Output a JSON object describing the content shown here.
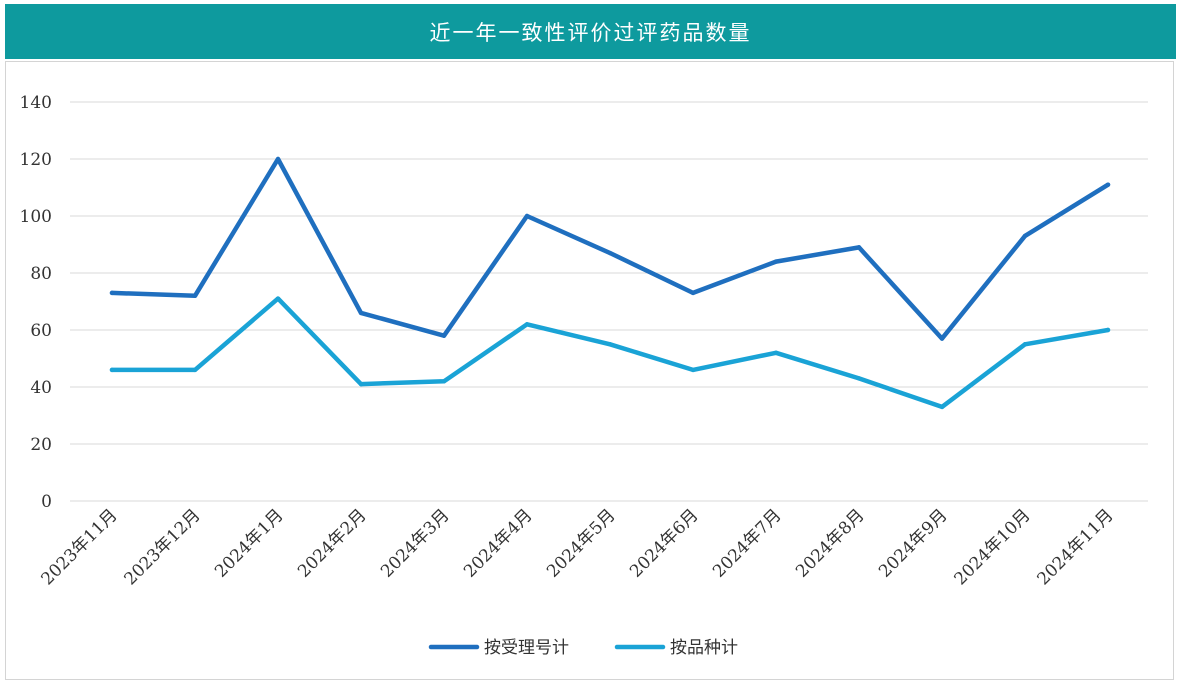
{
  "header": {
    "title": "近一年一致性评价过评药品数量",
    "background": "#0e9a9e"
  },
  "chart_data": {
    "type": "line",
    "title": "近一年一致性评价过评药品数量",
    "categories": [
      "2023年11月",
      "2023年12月",
      "2024年1月",
      "2024年2月",
      "2024年3月",
      "2024年4月",
      "2024年5月",
      "2024年6月",
      "2024年7月",
      "2024年8月",
      "2024年9月",
      "2024年10月",
      "2024年11月"
    ],
    "series": [
      {
        "name": "按受理号计",
        "color": "#1f6fbf",
        "values": [
          73,
          72,
          120,
          66,
          58,
          100,
          87,
          73,
          84,
          89,
          57,
          93,
          111
        ]
      },
      {
        "name": "按品种计",
        "color": "#1aa3d6",
        "values": [
          46,
          46,
          71,
          41,
          42,
          62,
          55,
          46,
          52,
          43,
          33,
          55,
          60
        ]
      }
    ],
    "ylim": [
      0,
      140
    ],
    "yticks": [
      0,
      20,
      40,
      60,
      80,
      100,
      120,
      140
    ],
    "grid": true,
    "legend": "bottom",
    "xlabel": "",
    "ylabel": ""
  }
}
